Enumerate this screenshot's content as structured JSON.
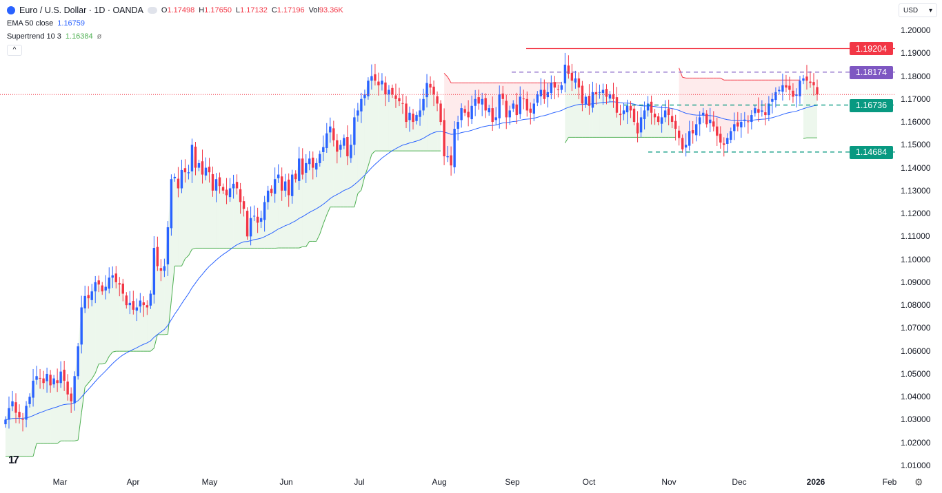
{
  "header": {
    "symbol_title": "Euro / U.S. Dollar · 1D · OANDA",
    "ohlc": {
      "o_label": "O",
      "o": "1.17498",
      "h_label": "H",
      "h": "1.17650",
      "l_label": "L",
      "l": "1.17132",
      "c_label": "C",
      "c": "1.17196",
      "vol_label": "Vol",
      "vol": "93.36K"
    }
  },
  "indicators": {
    "ema": {
      "label": "EMA 50 close",
      "value": "1.16759",
      "color": "#2962ff"
    },
    "supertrend": {
      "label": "Supertrend 10 3",
      "value": "1.16384",
      "icon": "hidden-eye-icon"
    }
  },
  "currency": "USD",
  "colors": {
    "up": "#2962ff",
    "down": "#f23645",
    "st_up": "#4caf50",
    "st_down": "#f23645",
    "teal": "#089981",
    "purple": "#7e57c2"
  },
  "chart_data": {
    "type": "candlestick",
    "ylim": [
      1.01,
      1.2
    ],
    "y_ticks": [
      "1.20000",
      "1.19000",
      "1.18000",
      "1.17000",
      "1.16000",
      "1.15000",
      "1.14000",
      "1.13000",
      "1.12000",
      "1.11000",
      "1.10000",
      "1.09000",
      "1.08000",
      "1.07000",
      "1.06000",
      "1.05000",
      "1.04000",
      "1.03000",
      "1.02000",
      "1.01000"
    ],
    "x_ticks": [
      "Mar",
      "Apr",
      "May",
      "Jun",
      "Jul",
      "Aug",
      "Sep",
      "Oct",
      "Nov",
      "Dec",
      "2026",
      "Feb"
    ],
    "closes": [
      1.03,
      1.035,
      1.038,
      1.033,
      1.031,
      1.03,
      1.036,
      1.04,
      1.047,
      1.049,
      1.048,
      1.046,
      1.05,
      1.045,
      1.048,
      1.046,
      1.051,
      1.047,
      1.041,
      1.038,
      1.049,
      1.062,
      1.079,
      1.084,
      1.083,
      1.086,
      1.09,
      1.089,
      1.086,
      1.088,
      1.092,
      1.093,
      1.09,
      1.089,
      1.085,
      1.08,
      1.081,
      1.078,
      1.079,
      1.082,
      1.08,
      1.079,
      1.085,
      1.105,
      1.097,
      1.095,
      1.097,
      1.114,
      1.135,
      1.136,
      1.131,
      1.139,
      1.138,
      1.138,
      1.15,
      1.14,
      1.142,
      1.137,
      1.14,
      1.138,
      1.13,
      1.135,
      1.132,
      1.13,
      1.128,
      1.131,
      1.133,
      1.131,
      1.125,
      1.122,
      1.11,
      1.118,
      1.119,
      1.116,
      1.118,
      1.125,
      1.13,
      1.129,
      1.135,
      1.137,
      1.13,
      1.134,
      1.128,
      1.137,
      1.135,
      1.144,
      1.137,
      1.142,
      1.144,
      1.14,
      1.142,
      1.146,
      1.149,
      1.155,
      1.158,
      1.152,
      1.147,
      1.15,
      1.153,
      1.145,
      1.15,
      1.162,
      1.165,
      1.17,
      1.172,
      1.178,
      1.18,
      1.178,
      1.176,
      1.178,
      1.172,
      1.174,
      1.172,
      1.17,
      1.169,
      1.168,
      1.16,
      1.164,
      1.16,
      1.163,
      1.165,
      1.17,
      1.177,
      1.175,
      1.172,
      1.168,
      1.16,
      1.145,
      1.145,
      1.141,
      1.157,
      1.16,
      1.166,
      1.164,
      1.162,
      1.167,
      1.17,
      1.168,
      1.17,
      1.165,
      1.166,
      1.16,
      1.162,
      1.172,
      1.17,
      1.162,
      1.165,
      1.168,
      1.163,
      1.171,
      1.17,
      1.165,
      1.164,
      1.168,
      1.172,
      1.174,
      1.17,
      1.173,
      1.177,
      1.175,
      1.174,
      1.176,
      1.185,
      1.181,
      1.178,
      1.179,
      1.175,
      1.168,
      1.171,
      1.167,
      1.173,
      1.172,
      1.173,
      1.174,
      1.171,
      1.172,
      1.17,
      1.164,
      1.163,
      1.165,
      1.167,
      1.165,
      1.16,
      1.155,
      1.162,
      1.165,
      1.168,
      1.164,
      1.162,
      1.16,
      1.162,
      1.165,
      1.163,
      1.16,
      1.157,
      1.153,
      1.148,
      1.15,
      1.156,
      1.155,
      1.159,
      1.162,
      1.164,
      1.159,
      1.161,
      1.158,
      1.154,
      1.151,
      1.15,
      1.153,
      1.156,
      1.159,
      1.158,
      1.16,
      1.161,
      1.16,
      1.163,
      1.166,
      1.164,
      1.165,
      1.163,
      1.168,
      1.17,
      1.173,
      1.174,
      1.176,
      1.175,
      1.174,
      1.171,
      1.172,
      1.178,
      1.179,
      1.178,
      1.177,
      1.176,
      1.172
    ],
    "current_price": 1.17196,
    "levels": [
      {
        "value": 1.19204,
        "label": "1.19204",
        "style": "solid",
        "color": "#f23645"
      },
      {
        "value": 1.18174,
        "label": "1.18174",
        "style": "dashed",
        "color": "#7e57c2"
      },
      {
        "value": 1.16736,
        "label": "1.16736",
        "style": "dashed",
        "color": "#089981"
      },
      {
        "value": 1.14684,
        "label": "1.14684",
        "style": "dashed",
        "color": "#089981"
      }
    ],
    "ema_period": 50,
    "supertrend": {
      "period": 10,
      "multiplier": 3
    }
  }
}
